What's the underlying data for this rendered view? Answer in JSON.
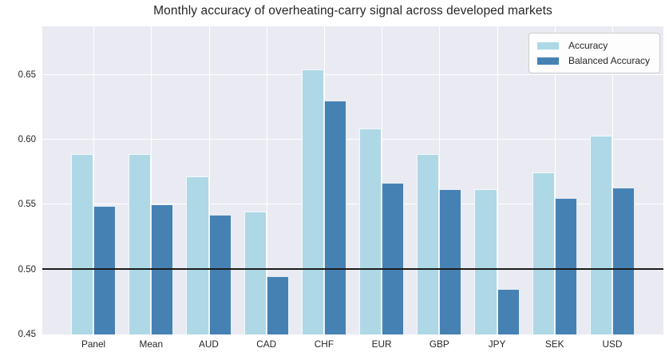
{
  "title": "Monthly accuracy of overheating-carry signal across developed markets",
  "colors": {
    "figure_bg": "#ffffff",
    "axes_bg": "#eaebf2",
    "grid": "#ffffff",
    "reference_line": "#1c1c1c",
    "text": "#262626",
    "accuracy_bar": "#aed8e6",
    "balanced_accuracy_bar": "#4681b4",
    "legend_border": "#cccccc"
  },
  "legend": {
    "position": "upper right",
    "entries": [
      {
        "label": "Accuracy",
        "color": "#aed8e6"
      },
      {
        "label": "Balanced Accuracy",
        "color": "#4681b4"
      }
    ]
  },
  "chart_data": {
    "type": "bar",
    "title": "Monthly accuracy of overheating-carry signal across developed markets",
    "categories": [
      "Panel",
      "Mean",
      "AUD",
      "CAD",
      "CHF",
      "EUR",
      "GBP",
      "JPY",
      "SEK",
      "USD"
    ],
    "series": [
      {
        "name": "Accuracy",
        "color": "#aed8e6",
        "values": [
          0.589,
          0.589,
          0.572,
          0.545,
          0.654,
          0.609,
          0.589,
          0.562,
          0.575,
          0.603
        ]
      },
      {
        "name": "Balanced Accuracy",
        "color": "#4681b4",
        "values": [
          0.549,
          0.55,
          0.542,
          0.495,
          0.63,
          0.567,
          0.562,
          0.485,
          0.555,
          0.563
        ]
      }
    ],
    "xlabel": "",
    "ylabel": "",
    "ylim": [
      0.45,
      0.6875
    ],
    "yticks": [
      0.45,
      0.5,
      0.55,
      0.6,
      0.65
    ],
    "yticklabels": [
      "0.45",
      "0.50",
      "0.55",
      "0.60",
      "0.65"
    ],
    "reference_line": 0.5,
    "grid": true,
    "legend_position": "upper right"
  }
}
